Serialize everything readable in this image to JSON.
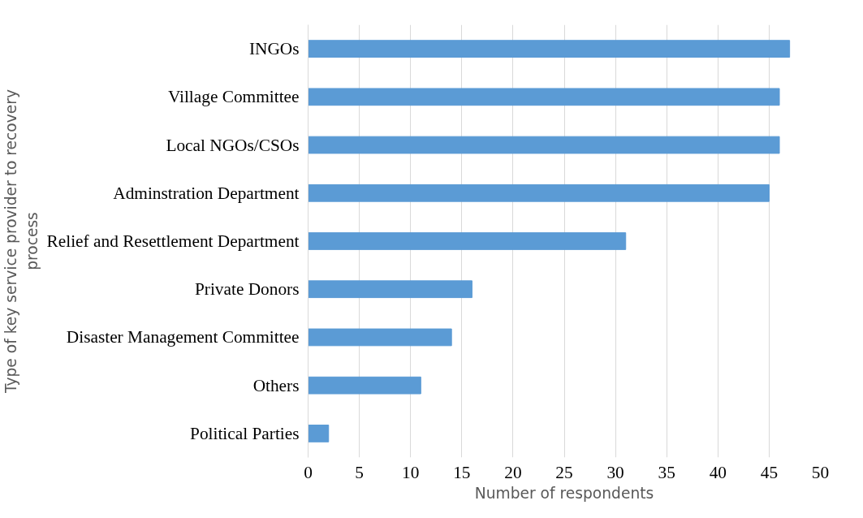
{
  "chart_data": {
    "type": "bar",
    "orientation": "horizontal",
    "xlabel": "Number of respondents",
    "ylabel": "Type of key service provider to recovery process",
    "categories": [
      "INGOs",
      "Village Committee",
      "Local NGOs/CSOs",
      "Adminstration Department",
      "Relief and Resettlement Department",
      "Private Donors",
      "Disaster Management Committee",
      "Others",
      "Political Parties"
    ],
    "values": [
      47,
      46,
      46,
      45,
      31,
      16,
      14,
      11,
      2
    ],
    "color": "#5b9bd5",
    "xlim": [
      0,
      50
    ],
    "xticks": [
      0,
      5,
      10,
      15,
      20,
      25,
      30,
      35,
      40,
      45,
      50
    ],
    "grid": "x"
  }
}
